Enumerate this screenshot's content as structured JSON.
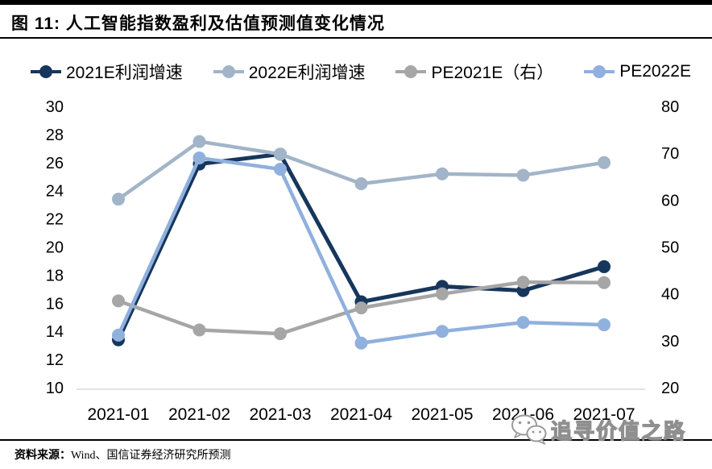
{
  "header": {
    "title": "图 11: 人工智能指数盈利及估值预测值变化情况"
  },
  "chart_data": {
    "type": "line",
    "categories": [
      "2021-01",
      "2021-02",
      "2021-03",
      "2021-04",
      "2021-05",
      "2021-06",
      "2021-07"
    ],
    "series": [
      {
        "name": "2021E利润增速",
        "axis": "left",
        "color": "#16365C",
        "values": [
          13.4,
          25.9,
          26.6,
          16.1,
          17.2,
          16.9,
          18.6
        ]
      },
      {
        "name": "2022E利润增速",
        "axis": "left",
        "color": "#A2B4C8",
        "values": [
          23.4,
          27.5,
          26.6,
          24.5,
          25.2,
          25.1,
          26.0
        ]
      },
      {
        "name": "PE2021E（右）",
        "axis": "right",
        "color": "#A6A6A6",
        "values": [
          38.5,
          32.3,
          31.5,
          37.0,
          40.0,
          42.5,
          42.4
        ]
      },
      {
        "name": "PE2022E",
        "axis": "right",
        "color": "#90B0DE",
        "values": [
          31.2,
          69.0,
          66.6,
          29.5,
          32.0,
          33.9,
          33.4
        ]
      }
    ],
    "left_axis": {
      "min": 10,
      "max": 30,
      "ticks": [
        30,
        28,
        26,
        24,
        22,
        20,
        18,
        16,
        14,
        12,
        10
      ]
    },
    "right_axis": {
      "min": 20,
      "max": 80,
      "ticks": [
        80,
        70,
        60,
        50,
        40,
        30,
        20
      ]
    },
    "legend_position": "top",
    "grid": false,
    "axis_line_color": "#D9D9D9"
  },
  "footer": {
    "source_label": "资料来源：",
    "source_text": "Wind、国信证券经济研究所预测"
  },
  "watermark": {
    "text": "追寻价值之路",
    "icon": "wechat-icon"
  }
}
